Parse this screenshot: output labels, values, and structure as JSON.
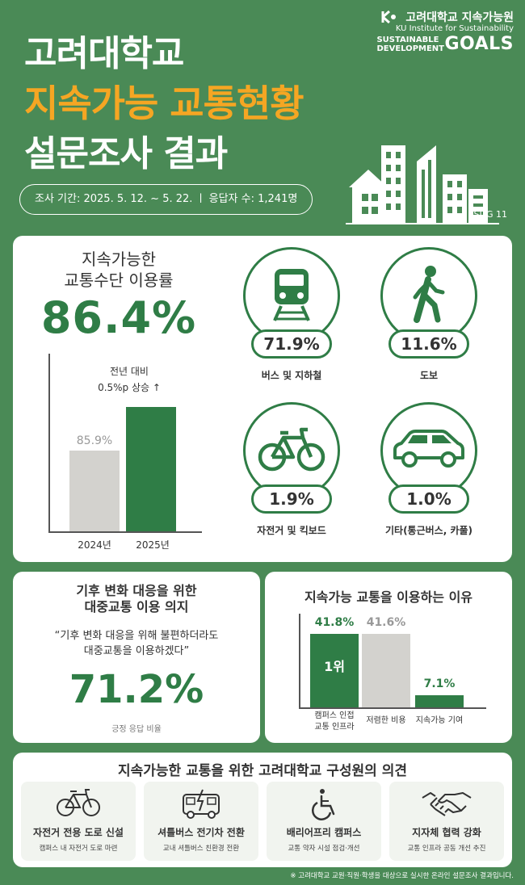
{
  "header": {
    "title_line1": "고려대학교",
    "title_line2": "지속가능 교통현황",
    "title_line3": "설문조사 결과",
    "survey_period": "조사 기간: 2025. 5. 12. ~ 5. 22. ㅣ 응답자 수: 1,241명",
    "org_name": "고려대학교 지속가능원",
    "org_sub": "KU Institute for Sustainability",
    "sdgs_line1": "SUSTAINABLE",
    "sdgs_line2": "DEVELOPMENT",
    "sdgs_goals": "GOALS",
    "sdg_tag": "SDG 11"
  },
  "mode_share": {
    "heading_line1": "지속가능한",
    "heading_line2": "교통수단 이용률",
    "rate": "86.4%",
    "compare_line1": "전년 대비",
    "compare_line2": "0.5%p 상승 ↑",
    "prev_value_label": "85.9%",
    "chart_data": {
      "type": "bar",
      "categories": [
        "2024년",
        "2025년"
      ],
      "values": [
        85.9,
        86.4
      ]
    },
    "modes": [
      {
        "label": "버스 및 지하철",
        "value": "71.9%",
        "icon": "train-icon"
      },
      {
        "label": "도보",
        "value": "11.6%",
        "icon": "walking-icon"
      },
      {
        "label": "자전거 및 킥보드",
        "value": "1.9%",
        "icon": "bicycle-icon"
      },
      {
        "label": "기타(통근버스, 카풀)",
        "value": "1.0%",
        "icon": "car-icon"
      }
    ]
  },
  "climate": {
    "title_line1": "기후 변화 대응을 위한",
    "title_line2": "대중교통 이용 의지",
    "quote_line1": "“기후 변화 대응을 위해 불편하더라도",
    "quote_line2": "대중교통을 이용하겠다”",
    "rate": "71.2%",
    "note": "긍정 응답 비율"
  },
  "reasons": {
    "title": "지속가능 교통을 이용하는 이유",
    "rank_label": "1위",
    "chart_data": {
      "type": "bar",
      "categories": [
        "캠퍼스 인접 교통 인프라",
        "저렴한 비용",
        "지속가능 기여"
      ],
      "category_lines": [
        [
          "캠퍼스 인접",
          "교통 인프라"
        ],
        [
          "저렴한 비용"
        ],
        [
          "지속가능 기여"
        ]
      ],
      "values": [
        41.8,
        41.6,
        7.1
      ],
      "value_labels": [
        "41.8%",
        "41.6%",
        "7.1%"
      ],
      "colors": [
        "#2f7d46",
        "#d3d2ce",
        "#2f7d46"
      ],
      "value_colors": [
        "#2f7d46",
        "#999999",
        "#2f7d46"
      ],
      "ylim": [
        0,
        50
      ]
    }
  },
  "opinions": {
    "title": "지속가능한 교통을 위한 고려대학교 구성원의 의견",
    "items": [
      {
        "title": "자전거 전용 도로 신설",
        "desc": "캠퍼스 내 자전거 도로 마련",
        "icon": "bicycle-icon"
      },
      {
        "title": "셔틀버스 전기차 전환",
        "desc": "교내 셔틀버스 친환경 전환",
        "icon": "electric-bus-icon"
      },
      {
        "title": "배리어프리 캠퍼스",
        "desc": "교통 약자 시설 점검·개선",
        "icon": "wheelchair-icon"
      },
      {
        "title": "지자체 협력 강화",
        "desc": "교통 인프라 공동 개선 추진",
        "icon": "handshake-icon"
      }
    ]
  },
  "footnote": "※ 고려대학교 교원·직원·학생을 대상으로 실시한 온라인 설문조사 결과입니다.",
  "colors": {
    "background": "#4a8a56",
    "accent_green": "#2f7d46",
    "accent_orange": "#f5a623",
    "bar_gray": "#d3d2ce"
  }
}
